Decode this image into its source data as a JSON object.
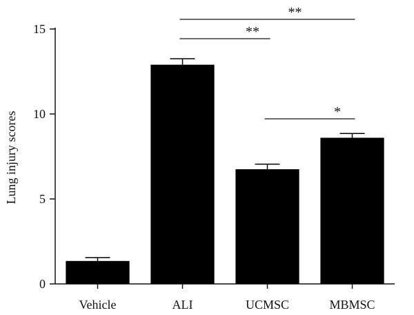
{
  "chart_data": {
    "type": "bar",
    "title": "",
    "xlabel": "",
    "ylabel": "Lung injury scores",
    "categories": [
      "Vehicle",
      "ALI",
      "UCMSC",
      "MBMSC"
    ],
    "values": [
      1.35,
      12.9,
      6.75,
      8.6
    ],
    "errors": [
      0.2,
      0.35,
      0.3,
      0.25
    ],
    "ylim": [
      0,
      15
    ],
    "yticks": [
      "0",
      "5",
      "10",
      "15"
    ],
    "grid": false,
    "bar_color": "#000000",
    "significance": [
      {
        "from": "ALI",
        "to": "MBMSC",
        "label": "**"
      },
      {
        "from": "ALI",
        "to": "UCMSC",
        "label": "**"
      },
      {
        "from": "UCMSC",
        "to": "MBMSC",
        "label": "*"
      }
    ]
  }
}
